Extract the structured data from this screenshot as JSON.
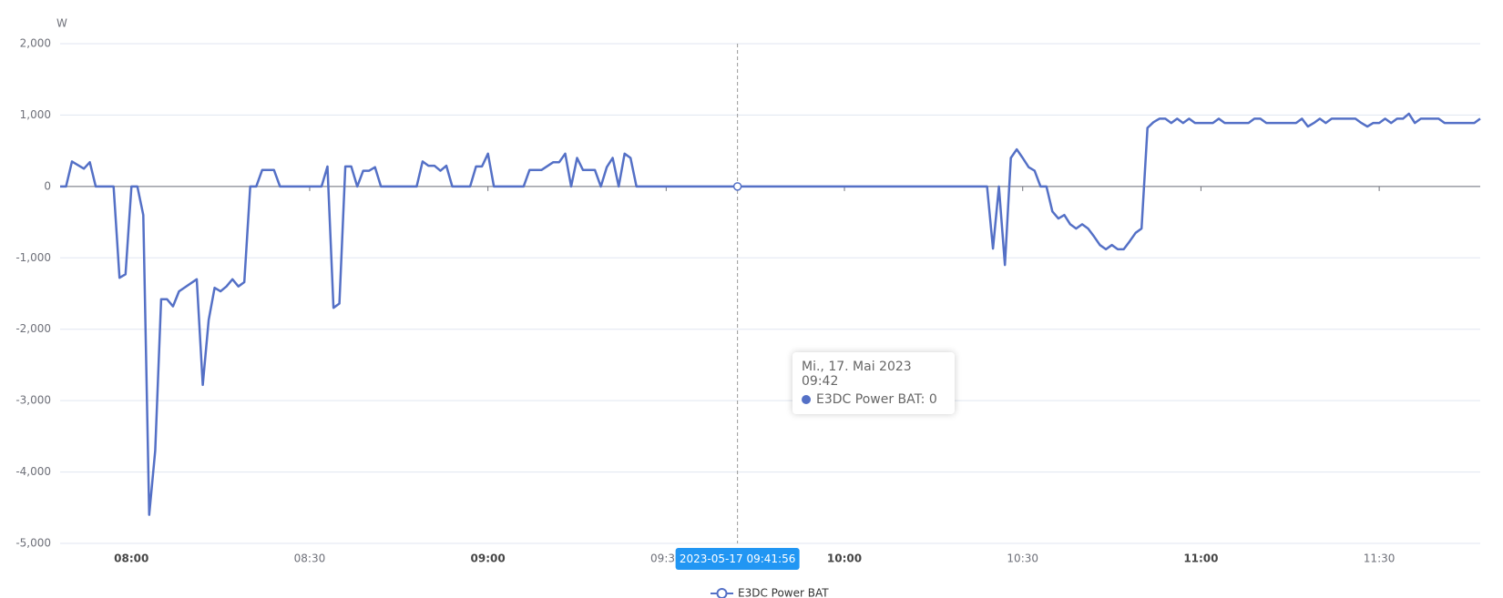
{
  "chart_data": {
    "type": "line",
    "unit_label": "W",
    "x": [
      "07:48",
      "07:49",
      "07:50",
      "07:52",
      "07:53",
      "07:54",
      "07:57",
      "07:58",
      "07:59",
      "08:00",
      "08:01",
      "08:02",
      "08:03",
      "08:04",
      "08:05",
      "08:06",
      "08:07",
      "08:08",
      "08:11",
      "08:12",
      "08:13",
      "08:14",
      "08:15",
      "08:16",
      "08:17",
      "08:18",
      "08:19",
      "08:20",
      "08:21",
      "08:22",
      "08:24",
      "08:25",
      "08:32",
      "08:33",
      "08:34",
      "08:35",
      "08:36",
      "08:37",
      "08:38",
      "08:39",
      "08:40",
      "08:41",
      "08:42",
      "08:48",
      "08:49",
      "08:50",
      "08:51",
      "08:52",
      "08:53",
      "08:54",
      "08:57",
      "08:58",
      "08:59",
      "09:00",
      "09:01",
      "09:06",
      "09:07",
      "09:09",
      "09:11",
      "09:12",
      "09:13",
      "09:14",
      "09:15",
      "09:16",
      "09:18",
      "09:19",
      "09:20",
      "09:21",
      "09:22",
      "09:23",
      "09:24",
      "09:25",
      "09:42",
      "10:24",
      "10:25",
      "10:26",
      "10:27",
      "10:28",
      "10:29",
      "10:30",
      "10:31",
      "10:32",
      "10:33",
      "10:34",
      "10:35",
      "10:36",
      "10:37",
      "10:38",
      "10:39",
      "10:40",
      "10:41",
      "10:42",
      "10:43",
      "10:44",
      "10:45",
      "10:46",
      "10:47",
      "10:48",
      "10:49",
      "10:50",
      "10:51",
      "10:52",
      "10:53",
      "10:54",
      "10:55",
      "10:56",
      "10:57",
      "10:58",
      "10:59",
      "11:00",
      "11:02",
      "11:03",
      "11:04",
      "11:08",
      "11:09",
      "11:10",
      "11:11",
      "11:16",
      "11:17",
      "11:18",
      "11:19",
      "11:20",
      "11:21",
      "11:22",
      "11:26",
      "11:27",
      "11:28",
      "11:29",
      "11:30",
      "11:31",
      "11:32",
      "11:33",
      "11:34",
      "11:35",
      "11:36",
      "11:37",
      "11:40",
      "11:41",
      "11:46",
      "11:47"
    ],
    "series": [
      {
        "name": "E3DC Power BAT",
        "color": "#5470c6",
        "values": [
          0,
          0,
          350,
          250,
          340,
          0,
          0,
          -1280,
          -1230,
          0,
          0,
          -400,
          -4600,
          -3700,
          -1580,
          -1580,
          -1680,
          -1470,
          -1300,
          -2780,
          -1870,
          -1420,
          -1470,
          -1400,
          -1300,
          -1400,
          -1340,
          0,
          0,
          230,
          230,
          0,
          0,
          280,
          -1700,
          -1640,
          280,
          280,
          0,
          220,
          220,
          270,
          0,
          0,
          350,
          290,
          290,
          220,
          290,
          0,
          0,
          280,
          280,
          460,
          0,
          0,
          230,
          230,
          340,
          340,
          460,
          0,
          400,
          230,
          230,
          0,
          270,
          400,
          0,
          460,
          400,
          0,
          0,
          0,
          -870,
          0,
          -1100,
          400,
          520,
          400,
          270,
          220,
          0,
          0,
          -350,
          -450,
          -400,
          -530,
          -590,
          -530,
          -590,
          -700,
          -820,
          -880,
          -820,
          -880,
          -880,
          -770,
          -650,
          -590,
          820,
          900,
          950,
          950,
          890,
          950,
          890,
          950,
          890,
          890,
          890,
          950,
          890,
          890,
          950,
          950,
          890,
          890,
          950,
          840,
          890,
          950,
          890,
          950,
          950,
          890,
          840,
          890,
          890,
          950,
          890,
          950,
          950,
          1020,
          890,
          950,
          950,
          890,
          890,
          950
        ]
      }
    ],
    "xlim": [
      "07:48",
      "11:47"
    ],
    "xticks": [
      "08:00",
      "08:30",
      "09:00",
      "09:30",
      "10:00",
      "10:30",
      "11:00",
      "11:30"
    ],
    "ylim": [
      -5000,
      2000
    ],
    "yticks": [
      {
        "value": 2000,
        "label": "2,000"
      },
      {
        "value": 1000,
        "label": "1,000"
      },
      0,
      {
        "value": -1000,
        "label": "-1,000"
      },
      {
        "value": -2000,
        "label": "-2,000"
      },
      {
        "value": -3000,
        "label": "-3,000"
      },
      {
        "value": -4000,
        "label": "-4,000"
      },
      {
        "value": -5000,
        "label": "-5,000"
      }
    ],
    "grid": true,
    "tooltip": {
      "title": "Mi., 17. Mai 2023 09:42",
      "text": "E3DC Power BAT: 0"
    },
    "axis_pointer_label": "2023-05-17 09:41:56"
  }
}
